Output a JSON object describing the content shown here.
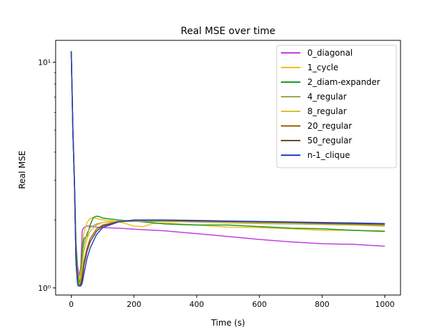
{
  "chart_data": {
    "type": "line",
    "title": "Real MSE over time",
    "xlabel": "Time (s)",
    "ylabel": "Real MSE",
    "xlim": [
      -50,
      1050
    ],
    "ylim": [
      0.93,
      12.5
    ],
    "yscale": "log",
    "x_ticks": [
      0,
      200,
      400,
      600,
      800,
      1000
    ],
    "x_tick_labels": [
      "0",
      "200",
      "400",
      "600",
      "800",
      "1000"
    ],
    "y_ticks": [
      1,
      10
    ],
    "y_tick_labels": [
      "10⁰",
      "10¹"
    ],
    "grid": false,
    "legend_position": "upper right",
    "series": [
      {
        "name": "0_diagonal",
        "color": "#c03fe0",
        "x": [
          0,
          5,
          10,
          15,
          20,
          25,
          30,
          35,
          40,
          50,
          60,
          80,
          100,
          150,
          200,
          300,
          400,
          500,
          600,
          700,
          800,
          900,
          1000
        ],
        "y": [
          11.2,
          5.2,
          3.0,
          1.6,
          1.25,
          1.12,
          1.25,
          1.8,
          1.85,
          1.88,
          1.88,
          1.86,
          1.85,
          1.84,
          1.82,
          1.79,
          1.74,
          1.69,
          1.64,
          1.6,
          1.57,
          1.56,
          1.53
        ]
      },
      {
        "name": "1_cycle",
        "color": "#f5be1a",
        "x": [
          0,
          5,
          10,
          15,
          20,
          25,
          30,
          35,
          40,
          50,
          60,
          70,
          80,
          100,
          150,
          200,
          230,
          260,
          300,
          400,
          500,
          600,
          700,
          800,
          900,
          1000
        ],
        "y": [
          11.2,
          5.0,
          2.9,
          1.5,
          1.18,
          1.08,
          1.2,
          1.5,
          1.75,
          1.95,
          2.03,
          2.05,
          2.03,
          2.0,
          1.97,
          1.88,
          1.87,
          1.93,
          1.94,
          1.9,
          1.86,
          1.85,
          1.83,
          1.8,
          1.8,
          1.79
        ]
      },
      {
        "name": "2_diam-expander",
        "color": "#1f9a1f",
        "x": [
          0,
          5,
          10,
          15,
          20,
          25,
          30,
          35,
          40,
          50,
          60,
          70,
          80,
          90,
          100,
          150,
          200,
          300,
          400,
          500,
          600,
          700,
          800,
          900,
          1000
        ],
        "y": [
          11.2,
          5.0,
          2.9,
          1.5,
          1.15,
          1.05,
          1.1,
          1.5,
          1.65,
          1.7,
          1.9,
          2.05,
          2.08,
          2.07,
          2.04,
          2.0,
          1.98,
          1.92,
          1.9,
          1.9,
          1.87,
          1.84,
          1.83,
          1.8,
          1.78
        ]
      },
      {
        "name": "4_regular",
        "color": "#9aa85a",
        "x": [
          0,
          5,
          10,
          15,
          20,
          25,
          30,
          35,
          40,
          50,
          60,
          80,
          100,
          150,
          200,
          300,
          400,
          500,
          600,
          700,
          800,
          900,
          1000
        ],
        "y": [
          11.2,
          5.0,
          2.9,
          1.3,
          1.02,
          1.02,
          1.08,
          1.3,
          1.55,
          1.75,
          1.85,
          1.92,
          1.95,
          1.97,
          1.97,
          1.97,
          1.96,
          1.94,
          1.93,
          1.92,
          1.91,
          1.9,
          1.88
        ]
      },
      {
        "name": "8_regular",
        "color": "#d8c030",
        "x": [
          0,
          5,
          10,
          15,
          20,
          25,
          30,
          35,
          40,
          50,
          60,
          80,
          100,
          150,
          200,
          300,
          400,
          500,
          600,
          700,
          800,
          900,
          1000
        ],
        "y": [
          11.2,
          5.0,
          2.9,
          1.3,
          1.05,
          1.03,
          1.08,
          1.25,
          1.45,
          1.65,
          1.78,
          1.9,
          1.95,
          1.98,
          1.99,
          1.98,
          1.97,
          1.95,
          1.94,
          1.93,
          1.92,
          1.91,
          1.9
        ]
      },
      {
        "name": "20_regular",
        "color": "#9a6a12",
        "x": [
          0,
          5,
          10,
          15,
          20,
          25,
          30,
          35,
          40,
          50,
          60,
          80,
          100,
          150,
          200,
          300,
          400,
          500,
          600,
          700,
          800,
          900,
          1000
        ],
        "y": [
          11.2,
          5.0,
          2.9,
          1.3,
          1.05,
          1.02,
          1.05,
          1.15,
          1.3,
          1.5,
          1.65,
          1.82,
          1.9,
          1.97,
          1.99,
          1.99,
          1.98,
          1.97,
          1.96,
          1.95,
          1.93,
          1.92,
          1.91
        ]
      },
      {
        "name": "50_regular",
        "color": "#6b4a2b",
        "x": [
          0,
          5,
          10,
          15,
          20,
          25,
          30,
          35,
          40,
          50,
          60,
          80,
          100,
          150,
          200,
          300,
          400,
          500,
          600,
          700,
          800,
          900,
          1000
        ],
        "y": [
          11.2,
          5.0,
          2.9,
          1.3,
          1.05,
          1.02,
          1.03,
          1.1,
          1.25,
          1.45,
          1.6,
          1.78,
          1.88,
          1.96,
          1.99,
          1.99,
          1.98,
          1.97,
          1.96,
          1.95,
          1.94,
          1.93,
          1.92
        ]
      },
      {
        "name": "n-1_clique",
        "color": "#2442c4",
        "x": [
          0,
          5,
          10,
          15,
          20,
          25,
          30,
          35,
          40,
          50,
          60,
          80,
          100,
          150,
          200,
          300,
          400,
          500,
          600,
          700,
          800,
          900,
          1000
        ],
        "y": [
          11.2,
          5.0,
          2.9,
          1.3,
          1.05,
          1.02,
          1.02,
          1.05,
          1.15,
          1.35,
          1.5,
          1.72,
          1.85,
          1.96,
          2.0,
          2.0,
          1.99,
          1.98,
          1.97,
          1.96,
          1.95,
          1.94,
          1.93
        ]
      }
    ]
  }
}
